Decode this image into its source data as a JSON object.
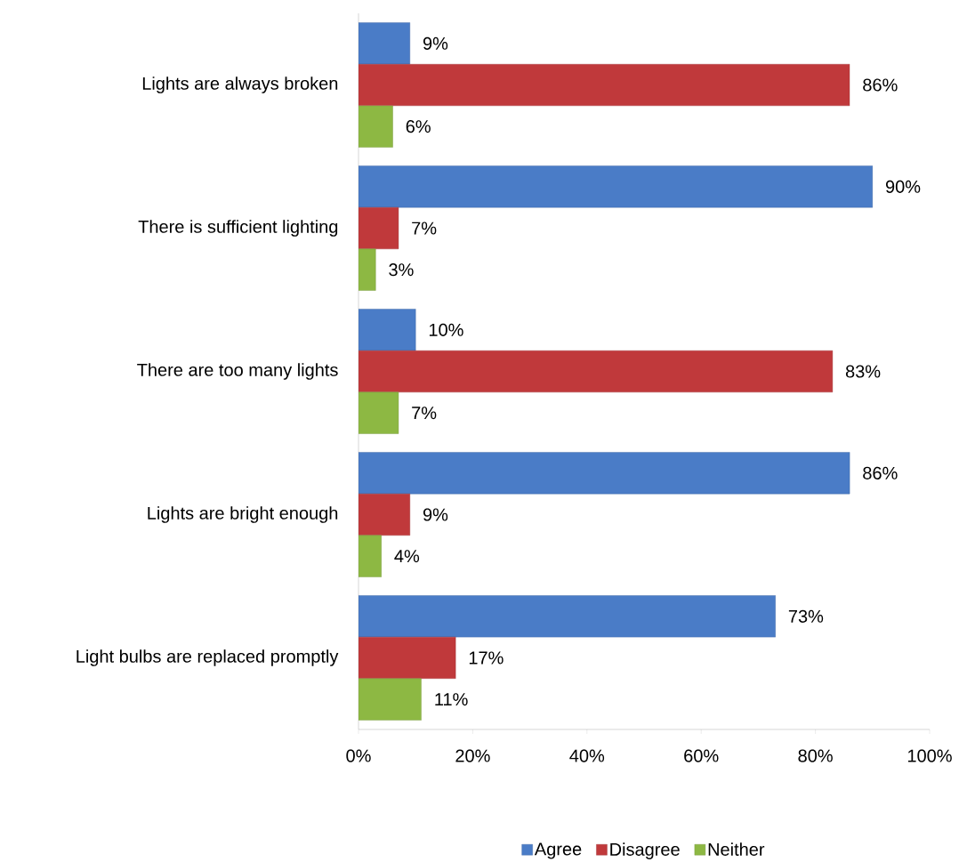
{
  "chart_data": {
    "type": "bar",
    "orientation": "horizontal",
    "categories": [
      "Lights are always broken",
      "There is sufficient lighting",
      "There are too many lights",
      "Lights are bright enough",
      "Light bulbs are replaced promptly"
    ],
    "series": [
      {
        "name": "Agree",
        "color": "#4a7cc7",
        "values": [
          9,
          90,
          10,
          86,
          73
        ],
        "value_labels": [
          "9%",
          "90%",
          "10%",
          "86%",
          "73%"
        ]
      },
      {
        "name": "Disagree",
        "color": "#c0393b",
        "values": [
          86,
          7,
          83,
          9,
          17
        ],
        "value_labels": [
          "86%",
          "7%",
          "83%",
          "9%",
          "17%"
        ]
      },
      {
        "name": "Neither",
        "color": "#8db843",
        "values": [
          6,
          3,
          7,
          4,
          11
        ],
        "value_labels": [
          "6%",
          "3%",
          "7%",
          "4%",
          "11%"
        ]
      }
    ],
    "xlim": [
      0,
      100
    ],
    "xticks": [
      {
        "value": 0,
        "label": "0%"
      },
      {
        "value": 20,
        "label": "20%"
      },
      {
        "value": 40,
        "label": "40%"
      },
      {
        "value": 60,
        "label": "60%"
      },
      {
        "value": 80,
        "label": "80%"
      },
      {
        "value": 100,
        "label": "100%"
      }
    ],
    "grid": false,
    "legend": "bottom"
  }
}
